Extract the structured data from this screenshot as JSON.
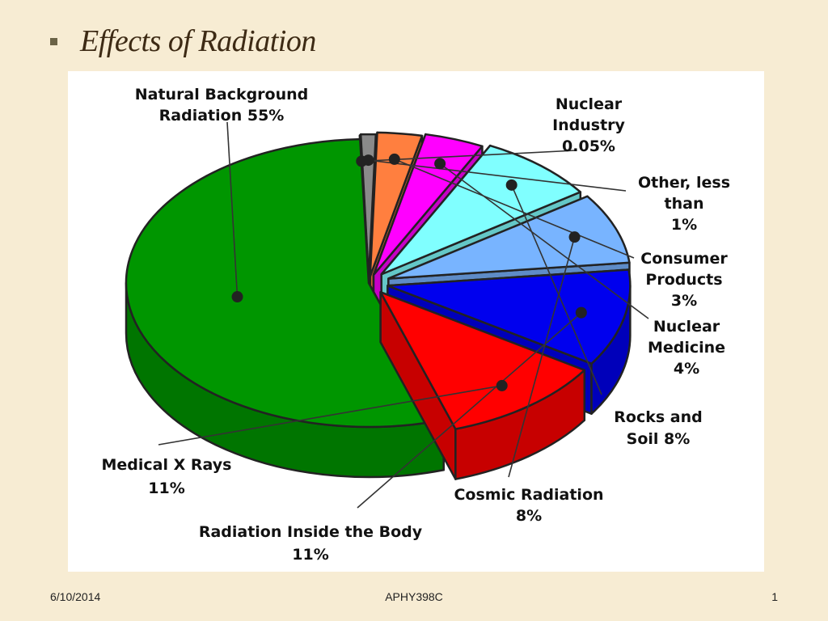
{
  "slide": {
    "title": "Effects of Radiation",
    "footer_date": "6/10/2014",
    "footer_course": "APHY398C",
    "footer_page": "1"
  },
  "chart_data": {
    "type": "pie",
    "title": "",
    "three_d": true,
    "slices": [
      {
        "name": "Natural Background Radiation",
        "value": 55,
        "color": "#009600",
        "label_lines": [
          "Natural Background",
          "Radiation 55%"
        ]
      },
      {
        "name": "Nuclear Industry",
        "value": 0.05,
        "color": "#8a4a14",
        "label_lines": [
          "Nuclear",
          "Industry",
          "0.05%"
        ]
      },
      {
        "name": "Other, less than",
        "value": 1,
        "color": "#8a8a8a",
        "label_lines": [
          "Other, less",
          "than",
          "1%"
        ]
      },
      {
        "name": "Consumer Products",
        "value": 3,
        "color": "#ff7f3f",
        "label_lines": [
          "Consumer",
          "Products",
          "3%"
        ]
      },
      {
        "name": "Nuclear Medicine",
        "value": 4,
        "color": "#ff00ff",
        "label_lines": [
          "Nuclear",
          "Medicine",
          "4%"
        ]
      },
      {
        "name": "Rocks and Soil",
        "value": 8,
        "color": "#80ffff",
        "label_lines": [
          "Rocks and",
          "Soil 8%"
        ]
      },
      {
        "name": "Cosmic Radiation",
        "value": 8,
        "color": "#78b4ff",
        "label_lines": [
          "Cosmic Radiation",
          "8%"
        ]
      },
      {
        "name": "Radiation Inside the Body",
        "value": 11,
        "color": "#0000ee",
        "label_lines": [
          "Radiation Inside the Body",
          "11%"
        ]
      },
      {
        "name": "Medical X Rays",
        "value": 11,
        "color": "#ff0000",
        "label_lines": [
          "Medical X Rays",
          "11%"
        ]
      }
    ]
  }
}
